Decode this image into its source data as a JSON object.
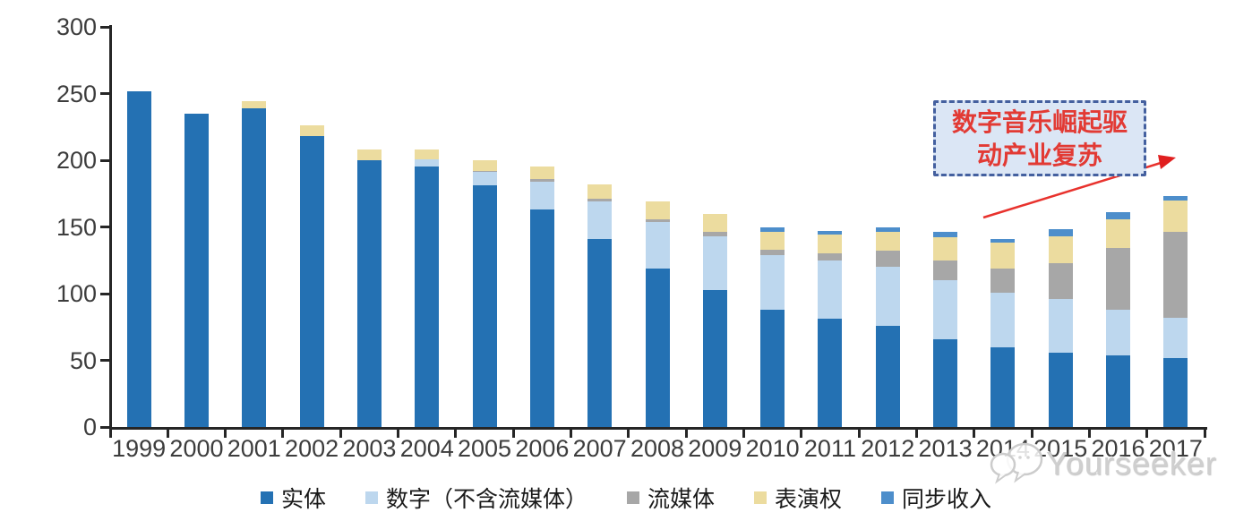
{
  "chart_data": {
    "type": "bar",
    "stacked": true,
    "categories": [
      "1999",
      "2000",
      "2001",
      "2002",
      "2003",
      "2004",
      "2005",
      "2006",
      "2007",
      "2008",
      "2009",
      "2010",
      "2011",
      "2012",
      "2013",
      "2014",
      "2015",
      "2016",
      "2017"
    ],
    "series": [
      {
        "name": "实体",
        "color": "#2471b3",
        "values": [
          252,
          235,
          239,
          218,
          200,
          195,
          181,
          163,
          141,
          119,
          103,
          88,
          81,
          76,
          66,
          60,
          56,
          54,
          52
        ]
      },
      {
        "name": "数字（不含流媒体）",
        "color": "#bdd7ee",
        "values": [
          0,
          0,
          0,
          0,
          0,
          6,
          10,
          21,
          28,
          35,
          40,
          41,
          44,
          44,
          44,
          41,
          40,
          34,
          30
        ]
      },
      {
        "name": "流媒体",
        "color": "#a7a7a7",
        "values": [
          0,
          0,
          0,
          0,
          0,
          0,
          1,
          2,
          2,
          2,
          3,
          4,
          5,
          12,
          15,
          18,
          27,
          46,
          64
        ]
      },
      {
        "name": "表演权",
        "color": "#ecdc9f",
        "values": [
          0,
          0,
          5,
          8,
          8,
          7,
          8,
          9,
          11,
          13,
          14,
          13,
          14,
          14,
          17,
          19,
          20,
          22,
          24
        ]
      },
      {
        "name": "同步收入",
        "color": "#4d8ecb",
        "values": [
          0,
          0,
          0,
          0,
          0,
          0,
          0,
          0,
          0,
          0,
          0,
          4,
          3,
          4,
          4,
          3,
          5,
          5,
          3
        ]
      }
    ],
    "ylim": [
      0,
      300
    ],
    "yticks": [
      "0",
      "50",
      "100",
      "150",
      "200",
      "250",
      "300"
    ],
    "xlabel": "",
    "ylabel": "",
    "title": "",
    "grid": false,
    "legend_position": "bottom"
  },
  "annotation": {
    "line1": "数字音乐崛起驱",
    "line2": "动产业复苏",
    "text_color": "#e23a34",
    "box_fill": "#dbe6f5",
    "box_border": "#44609f",
    "arrow_color": "#e8322d"
  },
  "watermark": {
    "text": "Yourseeker",
    "icon": "chat-bubbles-icon"
  },
  "axis_color": "#262626"
}
